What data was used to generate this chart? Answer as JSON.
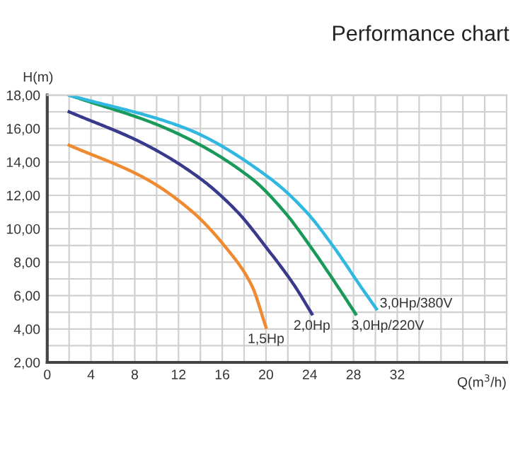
{
  "chart_data": {
    "type": "line",
    "title": "Performance chart",
    "xlabel": "Q(m$^{3}$/h)",
    "ylabel": "H(m)",
    "xlim": [
      0,
      42
    ],
    "ylim": [
      2,
      18
    ],
    "xticks": [
      0,
      {
        "value": 2,
        "label": null
      },
      4,
      {
        "value": 6,
        "label": null
      },
      8,
      {
        "value": 10,
        "label": null
      },
      12,
      {
        "value": 14,
        "label": null
      },
      16,
      {
        "value": 18,
        "label": null
      },
      20,
      {
        "value": 22,
        "label": null
      },
      24,
      {
        "value": 26,
        "label": null
      },
      28,
      {
        "value": 30,
        "label": null
      },
      32,
      {
        "value": 34,
        "label": null
      },
      {
        "value": 36,
        "label": null
      },
      {
        "value": 38,
        "label": null
      },
      {
        "value": 40,
        "label": null
      },
      {
        "value": 42,
        "label": null
      }
    ],
    "yticks": [
      {
        "value": 2,
        "label": "2,00"
      },
      {
        "value": 3,
        "label": null
      },
      {
        "value": 4,
        "label": "4,00"
      },
      {
        "value": 5,
        "label": null
      },
      {
        "value": 6,
        "label": "6,00"
      },
      {
        "value": 7,
        "label": null
      },
      {
        "value": 8,
        "label": "8,00"
      },
      {
        "value": 9,
        "label": null
      },
      {
        "value": 10,
        "label": "10,00"
      },
      {
        "value": 11,
        "label": null
      },
      {
        "value": 12,
        "label": "12,00"
      },
      {
        "value": 13,
        "label": null
      },
      {
        "value": 14,
        "label": "14,00"
      },
      {
        "value": 15,
        "label": null
      },
      {
        "value": 16,
        "label": "16,00"
      },
      {
        "value": 17,
        "label": null
      },
      {
        "value": 18,
        "label": "18,00"
      }
    ],
    "grid": true,
    "legend": false,
    "marker": "none",
    "line_style": "solid",
    "series": [
      {
        "name": "1,5Hp",
        "color": "#f08a30",
        "x": [
          2,
          9,
          13.3,
          16.3,
          18.7,
          20
        ],
        "values": [
          15,
          13,
          11,
          8.9,
          6.6,
          4.1
        ]
      },
      {
        "name": "2,0Hp",
        "color": "#3a3a8c",
        "x": [
          2,
          8.8,
          14,
          17.4,
          20,
          22.6,
          24.2
        ],
        "values": [
          17,
          15.1,
          13,
          11,
          8.9,
          6.6,
          4.9
        ]
      },
      {
        "name": "3,0Hp/220V",
        "color": "#1a9a5a",
        "x": [
          2,
          10.9,
          18.7,
          21.7,
          24.1,
          26.5,
          28.2
        ],
        "values": [
          18,
          16,
          13,
          11,
          8.9,
          6.6,
          4.9
        ]
      },
      {
        "name": "3,0Hp/380V",
        "color": "#30b8e0",
        "x": [
          2,
          12.7,
          20.4,
          23.7,
          26.2,
          28.6,
          30.1
        ],
        "values": [
          18,
          16,
          13,
          11,
          8.9,
          6.6,
          5.2
        ]
      }
    ]
  }
}
